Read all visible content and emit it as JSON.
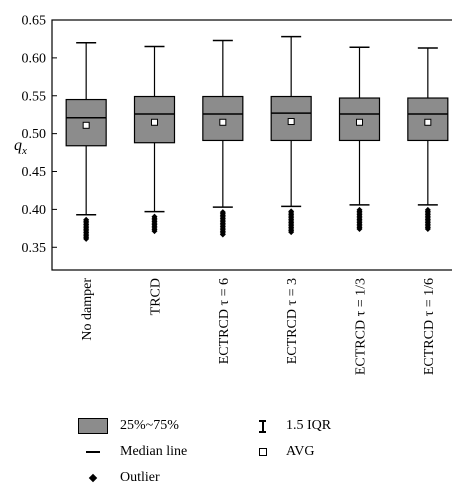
{
  "chart_data": {
    "type": "box",
    "ylabel": "q",
    "ylabel_sub": "x",
    "ylim": [
      0.32,
      0.65
    ],
    "yticks": [
      0.35,
      0.4,
      0.45,
      0.5,
      0.55,
      0.6,
      0.65
    ],
    "ytick_labels": [
      "0.35",
      "0.40",
      "0.45",
      "0.50",
      "0.55",
      "0.60",
      "0.65"
    ],
    "categories": [
      "No damper",
      "TRCD",
      "ECTRCD τ = 6",
      "ECTRCD τ = 3",
      "ECTRCD τ = 1/3",
      "ECTRCD τ = 1/6"
    ],
    "boxes": [
      {
        "q1": 0.484,
        "median": 0.521,
        "q3": 0.545,
        "avg": 0.511,
        "whisker_low": 0.393,
        "whisker_high": 0.62,
        "outlier_min": 0.361
      },
      {
        "q1": 0.488,
        "median": 0.526,
        "q3": 0.549,
        "avg": 0.515,
        "whisker_low": 0.397,
        "whisker_high": 0.615,
        "outlier_min": 0.37
      },
      {
        "q1": 0.491,
        "median": 0.526,
        "q3": 0.549,
        "avg": 0.515,
        "whisker_low": 0.403,
        "whisker_high": 0.623,
        "outlier_min": 0.365
      },
      {
        "q1": 0.491,
        "median": 0.527,
        "q3": 0.549,
        "avg": 0.516,
        "whisker_low": 0.404,
        "whisker_high": 0.628,
        "outlier_min": 0.368
      },
      {
        "q1": 0.491,
        "median": 0.526,
        "q3": 0.547,
        "avg": 0.515,
        "whisker_low": 0.406,
        "whisker_high": 0.614,
        "outlier_min": 0.374
      },
      {
        "q1": 0.491,
        "median": 0.526,
        "q3": 0.547,
        "avg": 0.515,
        "whisker_low": 0.406,
        "whisker_high": 0.613,
        "outlier_min": 0.374
      }
    ],
    "box_color": "#8c8c8c",
    "legend": {
      "box": "25%~75%",
      "median": "Median line",
      "outlier": "Outlier",
      "whisker": "1.5 IQR",
      "avg": "AVG"
    }
  }
}
